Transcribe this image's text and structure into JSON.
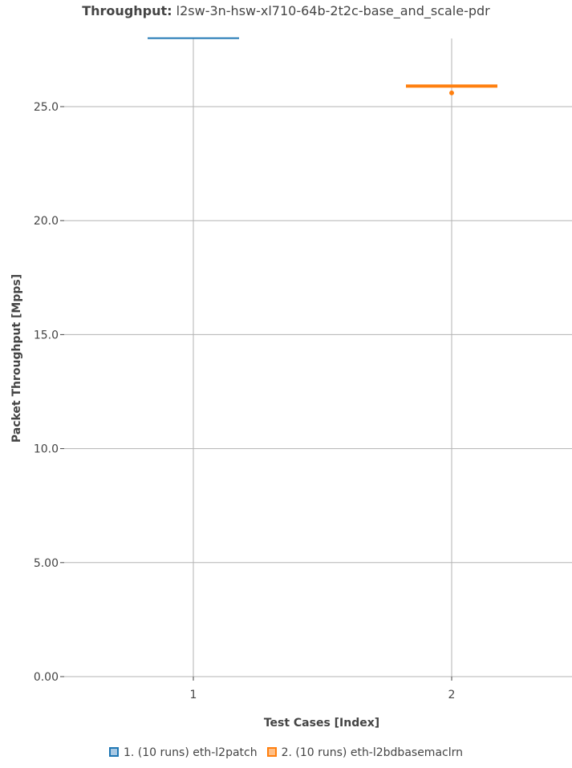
{
  "title": {
    "bold": "Throughput:",
    "rest": "l2sw-3n-hsw-xl710-64b-2t2c-base_and_scale-pdr"
  },
  "chart_data": {
    "type": "box",
    "xlabel": "Test Cases [Index]",
    "ylabel": "Packet Throughput [Mpps]",
    "ylim": [
      0,
      28
    ],
    "yticks": [
      0,
      5,
      10,
      15,
      20,
      25
    ],
    "ytick_labels": [
      "0.00",
      "5.00",
      "10.0",
      "15.0",
      "20.0",
      "25.0"
    ],
    "categories": [
      "1",
      "2"
    ],
    "grid": true,
    "legend_position": "bottom-center",
    "series": [
      {
        "name": "1. (10 runs) eth-l2patch",
        "x": 1,
        "color": "#1f77b4",
        "fill": "#a9c9e4",
        "median": 28.0,
        "outliers": []
      },
      {
        "name": "2. (10 runs) eth-l2bdbasemaclrn",
        "x": 2,
        "color": "#ff7f0e",
        "fill": "#ffbf86",
        "median": 25.9,
        "outliers": [
          25.6
        ]
      }
    ]
  }
}
